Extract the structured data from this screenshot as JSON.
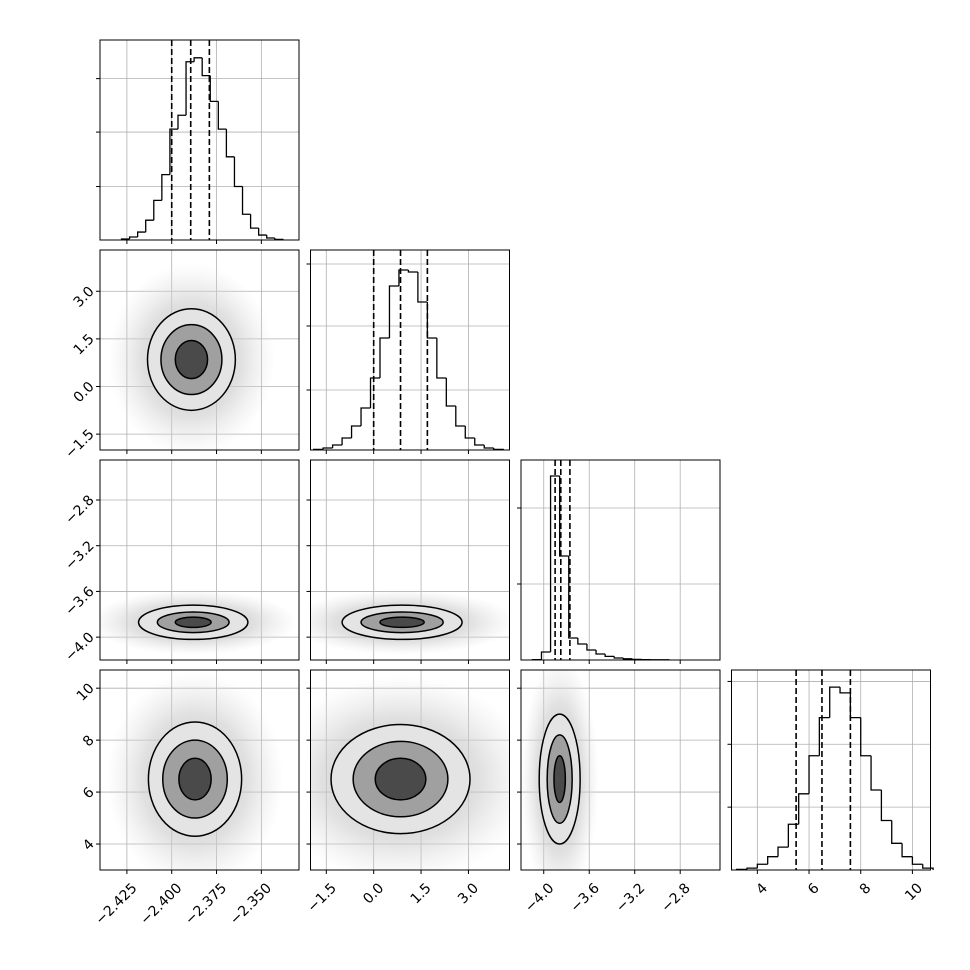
{
  "chart_data": {
    "type": "corner",
    "params": [
      {
        "xlim": [
          -2.44,
          -2.329
        ],
        "ticks": [
          {
            "value": -2.425,
            "label": "−2.425"
          },
          {
            "value": -2.4,
            "label": "−2.400"
          },
          {
            "value": -2.375,
            "label": "−2.375"
          },
          {
            "value": -2.35,
            "label": "−2.350"
          }
        ],
        "quantiles": [
          -2.4,
          -2.3894,
          -2.379
        ],
        "bins": [
          -2.428,
          -2.4235,
          -2.419,
          -2.4145,
          -2.41,
          -2.4055,
          -2.401,
          -2.3965,
          -2.392,
          -2.3875,
          -2.383,
          -2.3785,
          -2.374,
          -2.3695,
          -2.365,
          -2.3605,
          -2.356,
          -2.3515,
          -2.347,
          -2.3425,
          -2.338
        ],
        "counts": [
          5,
          15,
          40,
          100,
          200,
          330,
          560,
          630,
          900,
          920,
          830,
          700,
          560,
          420,
          270,
          130,
          60,
          25,
          10,
          3
        ],
        "ylim": [
          0,
          1010
        ],
        "yticks": [
          270,
          545,
          815
        ]
      },
      {
        "xlim": [
          -2.0,
          4.3
        ],
        "ticks": [
          {
            "value": -1.5,
            "label": "−1.5"
          },
          {
            "value": 0.0,
            "label": "0.0"
          },
          {
            "value": 1.5,
            "label": "1.5"
          },
          {
            "value": 3.0,
            "label": "3.0"
          }
        ],
        "quantiles": [
          0.0,
          0.85,
          1.7
        ],
        "bins": [
          -1.9,
          -1.6,
          -1.3,
          -1.0,
          -0.7,
          -0.4,
          -0.1,
          0.2,
          0.5,
          0.8,
          1.1,
          1.4,
          1.7,
          2.0,
          2.3,
          2.6,
          2.9,
          3.2,
          3.5,
          3.8,
          4.1
        ],
        "counts": [
          3,
          10,
          25,
          60,
          120,
          210,
          360,
          560,
          820,
          900,
          890,
          740,
          560,
          360,
          220,
          120,
          60,
          25,
          10,
          3
        ],
        "ylim": [
          0,
          1000
        ],
        "yticks": [
          300,
          620,
          930
        ]
      },
      {
        "xlim": [
          -4.2,
          -2.45
        ],
        "ticks": [
          {
            "value": -4.0,
            "label": "−4.0"
          },
          {
            "value": -3.6,
            "label": "−3.6"
          },
          {
            "value": -3.2,
            "label": "−3.2"
          },
          {
            "value": -2.8,
            "label": "−2.8"
          }
        ],
        "quantiles": [
          -3.9,
          -3.85,
          -3.77
        ],
        "bins": [
          -4.1,
          -4.02,
          -3.94,
          -3.86,
          -3.78,
          -3.7,
          -3.62,
          -3.54,
          -3.46,
          -3.38,
          -3.3,
          -3.22,
          -3.14,
          -3.06,
          -2.98,
          -2.9
        ],
        "counts": [
          2,
          40,
          920,
          520,
          110,
          80,
          50,
          30,
          18,
          10,
          6,
          3,
          2,
          1,
          1
        ],
        "ylim": [
          0,
          1000
        ],
        "yticks": [
          380,
          760
        ]
      },
      {
        "xlim": [
          3.0,
          10.7
        ],
        "ticks": [
          4,
          6,
          8,
          10
        ],
        "quantiles": [
          5.5,
          6.5,
          7.6
        ],
        "bins": [
          3.2,
          3.6,
          4.0,
          4.4,
          4.8,
          5.2,
          5.6,
          6.0,
          6.4,
          6.8,
          7.2,
          7.6,
          8.0,
          8.4,
          8.8,
          9.2,
          9.6,
          10.0,
          10.4,
          10.8
        ],
        "counts": [
          3,
          10,
          30,
          70,
          120,
          240,
          400,
          600,
          800,
          960,
          930,
          800,
          600,
          420,
          260,
          140,
          70,
          30,
          10
        ],
        "ylim": [
          0,
          1050
        ],
        "yticks": [
          330,
          660,
          990
        ]
      }
    ],
    "pairs": [
      {
        "x": 0,
        "y": 1,
        "center": [
          -2.389,
          0.85
        ],
        "levels": [
          [
            0.0245,
            1.6
          ],
          [
            0.017,
            1.1
          ],
          [
            0.009,
            0.6
          ]
        ]
      },
      {
        "x": 0,
        "y": 2,
        "center": [
          -2.388,
          -3.87
        ],
        "levels": [
          [
            0.0305,
            0.15
          ],
          [
            0.02,
            0.09
          ],
          [
            0.01,
            0.045
          ]
        ]
      },
      {
        "x": 1,
        "y": 2,
        "center": [
          0.9,
          -3.87
        ],
        "levels": [
          [
            1.9,
            0.15
          ],
          [
            1.3,
            0.09
          ],
          [
            0.7,
            0.045
          ]
        ]
      },
      {
        "x": 0,
        "y": 3,
        "center": [
          -2.387,
          6.5
        ],
        "levels": [
          [
            0.026,
            2.2
          ],
          [
            0.018,
            1.5
          ],
          [
            0.009,
            0.8
          ]
        ]
      },
      {
        "x": 1,
        "y": 3,
        "center": [
          0.85,
          6.5
        ],
        "levels": [
          [
            2.2,
            2.1
          ],
          [
            1.5,
            1.45
          ],
          [
            0.8,
            0.8
          ]
        ]
      },
      {
        "x": 2,
        "y": 3,
        "center": [
          -3.86,
          6.5
        ],
        "levels": [
          [
            0.18,
            2.5
          ],
          [
            0.11,
            1.7
          ],
          [
            0.05,
            0.9
          ]
        ]
      }
    ],
    "grid": true
  }
}
